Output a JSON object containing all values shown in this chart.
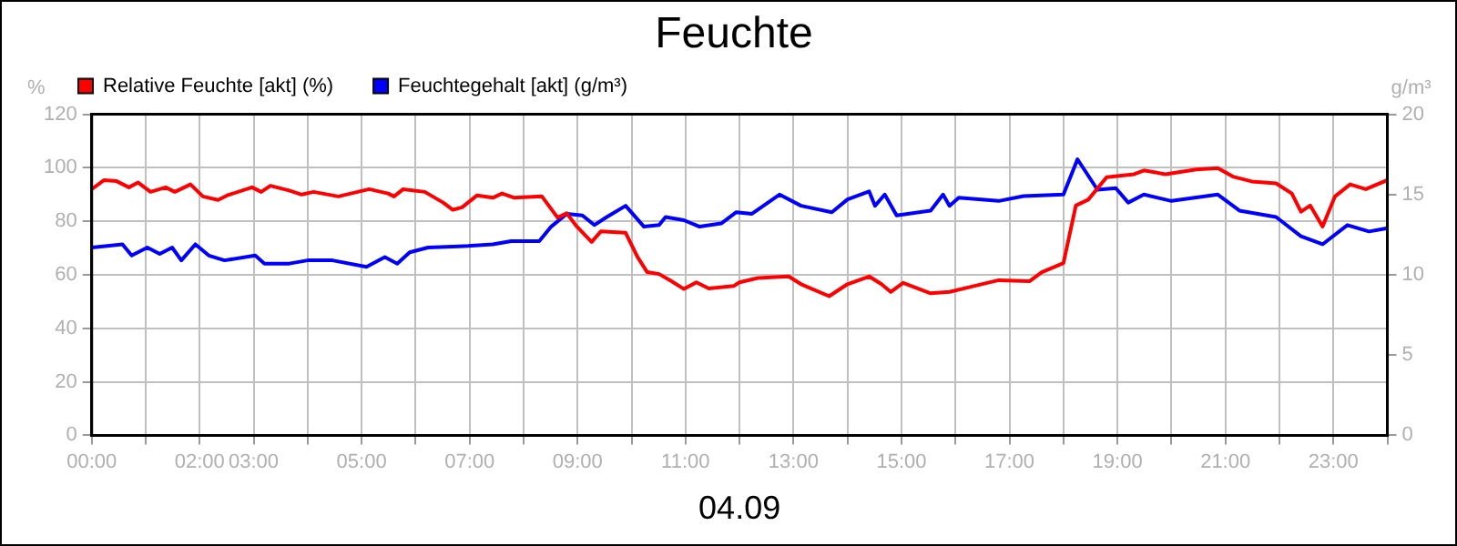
{
  "chart_data": {
    "type": "line",
    "title": "Feuchte",
    "xlabel": "04.09",
    "ylabel": "%",
    "y2label": "g/m³",
    "xlim": [
      0,
      24
    ],
    "xticks": [
      {
        "value": 0,
        "label": "00:00"
      },
      {
        "value": 1,
        "label": null
      },
      {
        "value": 2,
        "label": "02:00"
      },
      {
        "value": 3,
        "label": "03:00"
      },
      {
        "value": 4,
        "label": null
      },
      {
        "value": 5,
        "label": "05:00"
      },
      {
        "value": 6,
        "label": null
      },
      {
        "value": 7,
        "label": "07:00"
      },
      {
        "value": 8,
        "label": null
      },
      {
        "value": 9,
        "label": "09:00"
      },
      {
        "value": 10,
        "label": null
      },
      {
        "value": 11,
        "label": "11:00"
      },
      {
        "value": 12,
        "label": null
      },
      {
        "value": 13,
        "label": "13:00"
      },
      {
        "value": 14,
        "label": null
      },
      {
        "value": 15,
        "label": "15:00"
      },
      {
        "value": 16,
        "label": null
      },
      {
        "value": 17,
        "label": "17:00"
      },
      {
        "value": 18,
        "label": null
      },
      {
        "value": 19,
        "label": "19:00"
      },
      {
        "value": 20,
        "label": null
      },
      {
        "value": 21,
        "label": "21:00"
      },
      {
        "value": 22,
        "label": null
      },
      {
        "value": 23,
        "label": "23:00"
      },
      {
        "value": 24,
        "label": null
      }
    ],
    "ylim": [
      0,
      120
    ],
    "yticks": [
      0,
      20,
      40,
      60,
      80,
      100,
      120
    ],
    "y2lim": [
      0,
      20
    ],
    "y2ticks": [
      0,
      5,
      10,
      15,
      20
    ],
    "grid": true,
    "legend": "top left",
    "marker": "none",
    "line_style": "solid",
    "series": [
      {
        "name": "Relative Feuchte [akt] (%)",
        "color": "#ff0000",
        "x": [
          0,
          0.23,
          0.46,
          0.69,
          0.86,
          1.09,
          1.37,
          1.54,
          1.83,
          2.06,
          2.34,
          2.51,
          2.97,
          3.14,
          3.31,
          3.66,
          3.89,
          4.11,
          4.57,
          5.14,
          5.49,
          5.6,
          5.77,
          6.17,
          6.51,
          6.69,
          6.86,
          7.14,
          7.43,
          7.6,
          7.83,
          8.34,
          8.63,
          8.8,
          8.97,
          9.26,
          9.43,
          9.89,
          10.11,
          10.29,
          10.51,
          10.74,
          10.97,
          11.2,
          11.43,
          11.89,
          12,
          12.34,
          12.91,
          13.14,
          13.66,
          14,
          14.4,
          14.63,
          14.8,
          15.03,
          15.54,
          15.89,
          16.34,
          16.8,
          17.37,
          17.6,
          18,
          18.23,
          18.46,
          18.8,
          19.31,
          19.49,
          19.89,
          20.46,
          20.86,
          21.14,
          21.49,
          21.94,
          22.23,
          22.4,
          22.57,
          22.8,
          23.03,
          23.31,
          23.6,
          24
        ],
        "values": [
          92,
          95.4,
          95,
          92.7,
          94.5,
          91,
          92.7,
          91,
          93.8,
          89.3,
          88,
          89.7,
          92.7,
          91,
          93.3,
          91.5,
          90,
          91,
          89.3,
          92,
          90.4,
          89.3,
          92,
          91,
          87,
          84.3,
          85.2,
          89.7,
          88.8,
          90.4,
          88.8,
          89.3,
          81.4,
          83,
          78.4,
          72.3,
          76.2,
          75.7,
          66.7,
          61,
          60.3,
          57.6,
          54.7,
          57.2,
          54.9,
          55.8,
          57.2,
          58.8,
          59.4,
          56.5,
          52,
          56.5,
          59.4,
          56.5,
          53.6,
          57,
          53.1,
          53.6,
          55.8,
          58,
          57.6,
          61,
          64.4,
          85.9,
          88.1,
          96.5,
          97.6,
          99,
          97.6,
          99.4,
          99.9,
          96.7,
          94.9,
          94.2,
          90.4,
          83.6,
          85.9,
          78,
          89.3,
          93.8,
          92,
          95.4
        ]
      },
      {
        "name": "Feuchtegehalt [akt] (g/m³)",
        "color": "#0000ff",
        "axis": "y2",
        "x": [
          0,
          0.29,
          0.57,
          0.74,
          1.03,
          1.26,
          1.49,
          1.66,
          1.92,
          2.17,
          2.46,
          3.03,
          3.2,
          3.66,
          4,
          4.46,
          5.09,
          5.43,
          5.66,
          5.89,
          6.23,
          6.97,
          7.43,
          7.77,
          8.29,
          8.51,
          8.8,
          9.09,
          9.31,
          9.54,
          9.89,
          10.23,
          10.51,
          10.63,
          10.97,
          11.26,
          11.66,
          11.94,
          12.23,
          12.74,
          13.14,
          13.71,
          14,
          14.4,
          14.51,
          14.69,
          14.91,
          15.54,
          15.77,
          15.89,
          16.06,
          16.8,
          17.26,
          18,
          18.26,
          18.63,
          18.97,
          19.2,
          19.49,
          20,
          20.86,
          21.26,
          21.94,
          22.4,
          22.8,
          23.26,
          23.66,
          24
        ],
        "values": [
          11.7,
          11.8,
          11.9,
          11.2,
          11.7,
          11.3,
          11.7,
          10.9,
          11.9,
          11.2,
          10.9,
          11.2,
          10.7,
          10.7,
          10.9,
          10.9,
          10.5,
          11.1,
          10.7,
          11.4,
          11.7,
          11.8,
          11.9,
          12.1,
          12.1,
          13,
          13.8,
          13.7,
          13.1,
          13.6,
          14.3,
          13,
          13.1,
          13.6,
          13.4,
          13,
          13.2,
          13.9,
          13.8,
          15,
          14.3,
          13.9,
          14.7,
          15.2,
          14.3,
          15,
          13.7,
          14,
          15,
          14.3,
          14.8,
          14.6,
          14.9,
          15,
          17.2,
          15.3,
          15.4,
          14.5,
          15,
          14.6,
          15,
          14,
          13.6,
          12.4,
          11.9,
          13.1,
          12.7,
          12.9
        ]
      }
    ]
  }
}
